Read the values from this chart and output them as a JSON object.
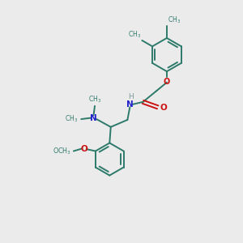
{
  "bg_color": "#ebebeb",
  "bond_color": "#2d7a6a",
  "N_color": "#2222cc",
  "O_color": "#cc1111",
  "H_color": "#7a9a9a",
  "lw": 1.4,
  "fig_size": [
    3.0,
    3.0
  ],
  "dpi": 100,
  "xlim": [
    0,
    10
  ],
  "ylim": [
    0,
    10
  ]
}
